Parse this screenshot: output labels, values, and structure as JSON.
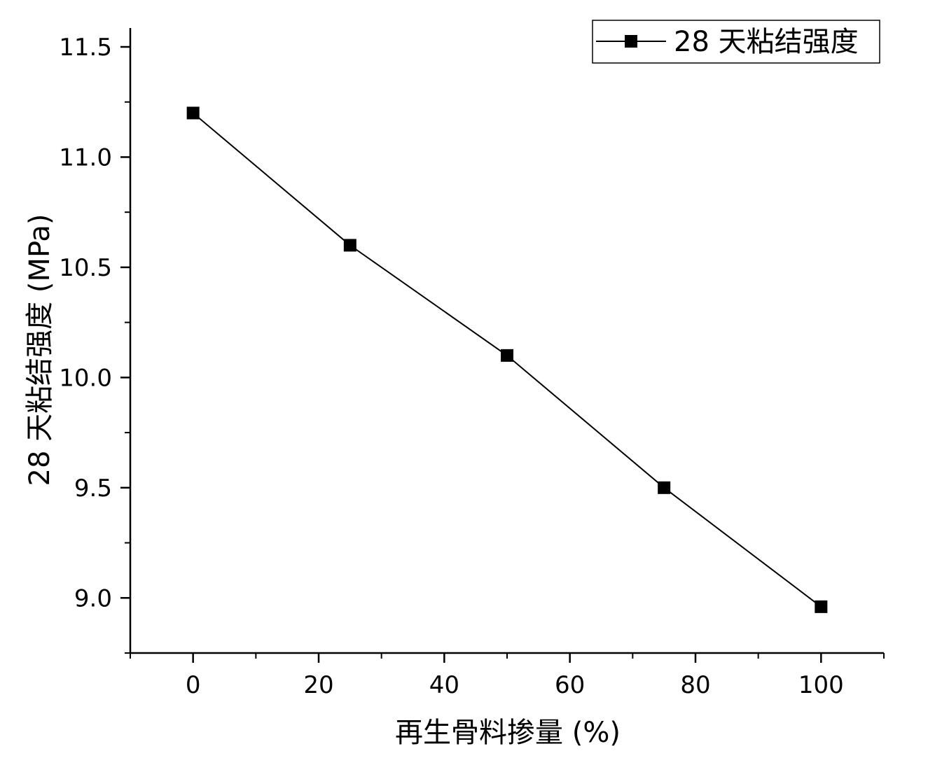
{
  "chart_data": {
    "type": "line",
    "title": "",
    "xlabel": "再生骨料掺量 (%)",
    "ylabel": "28 天粘结强度 (MPa)",
    "xlim": [
      -10,
      110
    ],
    "ylim": [
      8.75,
      11.5
    ],
    "x_ticks": [
      0,
      20,
      40,
      60,
      80,
      100
    ],
    "x_tick_labels": [
      "0",
      "20",
      "40",
      "60",
      "80",
      "100"
    ],
    "y_ticks": [
      9.0,
      9.5,
      10.0,
      10.5,
      11.0,
      11.5
    ],
    "y_tick_labels": [
      "9.0",
      "9.5",
      "10.0",
      "10.5",
      "11.0",
      "11.5"
    ],
    "grid": false,
    "legend_position": "top-right",
    "series": [
      {
        "name": "28 天粘结强度",
        "color": "#000000",
        "marker": "square",
        "x": [
          0,
          25,
          50,
          75,
          100
        ],
        "y": [
          11.2,
          10.6,
          10.1,
          9.5,
          8.96
        ]
      }
    ]
  }
}
